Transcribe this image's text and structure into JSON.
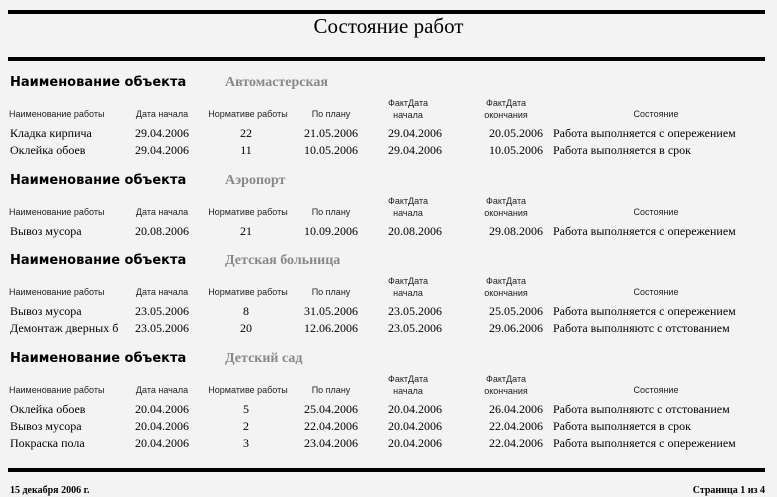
{
  "header": {
    "title": "Состояние работ"
  },
  "object_label": "Наименование объекта",
  "columns": [
    [
      "Наименование работы"
    ],
    [
      "Дата начала"
    ],
    [
      "Нормативе работы"
    ],
    [
      "По плану"
    ],
    [
      "ФактДата",
      "начала"
    ],
    [
      "ФактДата",
      "окончания"
    ],
    [
      "Состояние"
    ]
  ],
  "groups": [
    {
      "name": "Автомастерская",
      "rows": [
        [
          "Кладка кирпича",
          "29.04.2006",
          22,
          "21.05.2006",
          "29.04.2006",
          "20.05.2006",
          "Работа выполняется с опережением"
        ],
        [
          "Оклейка обоев",
          "29.04.2006",
          11,
          "10.05.2006",
          "29.04.2006",
          "10.05.2006",
          "Работа выполняется в срок"
        ]
      ]
    },
    {
      "name": "Аэропорт",
      "rows": [
        [
          "Вывоз мусора",
          "20.08.2006",
          21,
          "10.09.2006",
          "20.08.2006",
          "29.08.2006",
          "Работа выполняется с опережением"
        ]
      ]
    },
    {
      "name": "Детская больница",
      "rows": [
        [
          "Вывоз мусора",
          "23.05.2006",
          8,
          "31.05.2006",
          "23.05.2006",
          "25.05.2006",
          "Работа выполняется с опережением"
        ],
        [
          "Демонтаж дверных б",
          "23.05.2006",
          20,
          "12.06.2006",
          "23.05.2006",
          "29.06.2006",
          "Работа выполняютс с отстованием"
        ]
      ]
    },
    {
      "name": "Детский сад",
      "rows": [
        [
          "Оклейка обоев",
          "20.04.2006",
          5,
          "25.04.2006",
          "20.04.2006",
          "26.04.2006",
          "Работа выполняютс с отстованием"
        ],
        [
          "Вывоз мусора",
          "20.04.2006",
          2,
          "22.04.2006",
          "20.04.2006",
          "22.04.2006",
          "Работа выполняется в срок"
        ],
        [
          "Покраска пола",
          "20.04.2006",
          3,
          "23.04.2006",
          "20.04.2006",
          "22.04.2006",
          "Работа выполняется с опережением"
        ]
      ]
    }
  ],
  "footer": {
    "date": "15 декабря 2006 г.",
    "page": "Страница 1 из 4"
  }
}
